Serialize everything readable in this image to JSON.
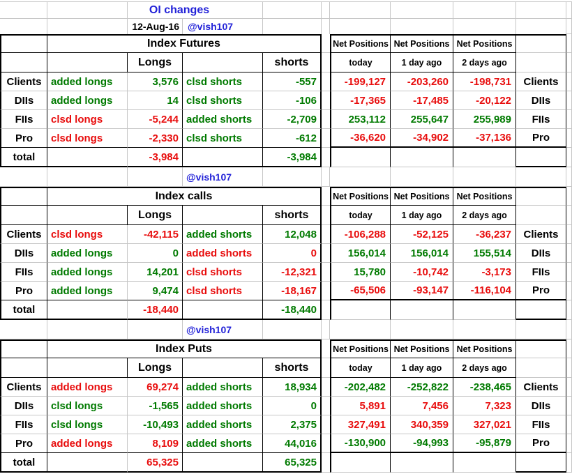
{
  "header": {
    "title": "OI changes",
    "date": "12-Aug-16",
    "handle": "@vish107"
  },
  "columns": {
    "net_positions": "Net Positions",
    "periods": [
      "today",
      "1 day ago",
      "2 days ago"
    ],
    "longs": "Longs",
    "shorts": "shorts"
  },
  "totals_label": "total",
  "colors": {
    "green": "#007A00",
    "red": "#E80D0D",
    "blue": "#2222D8",
    "grid": "#C6C6C6",
    "border": "#000000"
  },
  "sections": [
    {
      "slug": "section-index-futures",
      "title": "Index Futures",
      "rows": [
        {
          "label": "Clients",
          "long_action": "added longs",
          "long_action_color": "green",
          "long_value": "3,576",
          "long_value_color": "green",
          "short_action": "clsd shorts",
          "short_action_color": "green",
          "short_value": "-557",
          "short_value_color": "green",
          "net": [
            "-199,127",
            "-203,260",
            "-198,731"
          ],
          "net_colors": [
            "red",
            "red",
            "red"
          ]
        },
        {
          "label": "DIIs",
          "long_action": "added longs",
          "long_action_color": "green",
          "long_value": "14",
          "long_value_color": "green",
          "short_action": "clsd shorts",
          "short_action_color": "green",
          "short_value": "-106",
          "short_value_color": "green",
          "net": [
            "-17,365",
            "-17,485",
            "-20,122"
          ],
          "net_colors": [
            "red",
            "red",
            "red"
          ]
        },
        {
          "label": "FIIs",
          "long_action": "clsd longs",
          "long_action_color": "red",
          "long_value": "-5,244",
          "long_value_color": "red",
          "short_action": "added shorts",
          "short_action_color": "green",
          "short_value": "-2,709",
          "short_value_color": "green",
          "net": [
            "253,112",
            "255,647",
            "255,989"
          ],
          "net_colors": [
            "green",
            "green",
            "green"
          ]
        },
        {
          "label": "Pro",
          "long_action": "clsd longs",
          "long_action_color": "red",
          "long_value": "-2,330",
          "long_value_color": "red",
          "short_action": "clsd shorts",
          "short_action_color": "green",
          "short_value": "-612",
          "short_value_color": "green",
          "net": [
            "-36,620",
            "-34,902",
            "-37,136"
          ],
          "net_colors": [
            "red",
            "red",
            "red"
          ]
        }
      ],
      "total_long": "-3,984",
      "total_long_color": "red",
      "total_short": "-3,984",
      "total_short_color": "green",
      "has_separator": true,
      "separator_handle": "@vish107"
    },
    {
      "slug": "section-index-calls",
      "title": "Index calls",
      "rows": [
        {
          "label": "Clients",
          "long_action": "clsd longs",
          "long_action_color": "red",
          "long_value": "-42,115",
          "long_value_color": "red",
          "short_action": "added shorts",
          "short_action_color": "green",
          "short_value": "12,048",
          "short_value_color": "green",
          "net": [
            "-106,288",
            "-52,125",
            "-36,237"
          ],
          "net_colors": [
            "red",
            "red",
            "red"
          ]
        },
        {
          "label": "DIIs",
          "long_action": "added longs",
          "long_action_color": "green",
          "long_value": "0",
          "long_value_color": "green",
          "short_action": "added shorts",
          "short_action_color": "red",
          "short_value": "0",
          "short_value_color": "red",
          "net": [
            "156,014",
            "156,014",
            "155,514"
          ],
          "net_colors": [
            "green",
            "green",
            "green"
          ]
        },
        {
          "label": "FIIs",
          "long_action": "added longs",
          "long_action_color": "green",
          "long_value": "14,201",
          "long_value_color": "green",
          "short_action": "clsd shorts",
          "short_action_color": "red",
          "short_value": "-12,321",
          "short_value_color": "red",
          "net": [
            "15,780",
            "-10,742",
            "-3,173"
          ],
          "net_colors": [
            "green",
            "red",
            "red"
          ]
        },
        {
          "label": "Pro",
          "long_action": "added longs",
          "long_action_color": "green",
          "long_value": "9,474",
          "long_value_color": "green",
          "short_action": "clsd shorts",
          "short_action_color": "red",
          "short_value": "-18,167",
          "short_value_color": "red",
          "net": [
            "-65,506",
            "-93,147",
            "-116,104"
          ],
          "net_colors": [
            "red",
            "red",
            "red"
          ]
        }
      ],
      "total_long": "-18,440",
      "total_long_color": "red",
      "total_short": "-18,440",
      "total_short_color": "green",
      "has_separator": true,
      "separator_handle": "@vish107"
    },
    {
      "slug": "section-index-puts",
      "title": "Index Puts",
      "rows": [
        {
          "label": "Clients",
          "long_action": "added longs",
          "long_action_color": "red",
          "long_value": "69,274",
          "long_value_color": "red",
          "short_action": "added shorts",
          "short_action_color": "green",
          "short_value": "18,934",
          "short_value_color": "green",
          "net": [
            "-202,482",
            "-252,822",
            "-238,465"
          ],
          "net_colors": [
            "green",
            "green",
            "green"
          ]
        },
        {
          "label": "DIIs",
          "long_action": "clsd longs",
          "long_action_color": "green",
          "long_value": "-1,565",
          "long_value_color": "green",
          "short_action": "added shorts",
          "short_action_color": "green",
          "short_value": "0",
          "short_value_color": "green",
          "net": [
            "5,891",
            "7,456",
            "7,323"
          ],
          "net_colors": [
            "red",
            "red",
            "red"
          ]
        },
        {
          "label": "FIIs",
          "long_action": "clsd longs",
          "long_action_color": "green",
          "long_value": "-10,493",
          "long_value_color": "green",
          "short_action": "added shorts",
          "short_action_color": "green",
          "short_value": "2,375",
          "short_value_color": "green",
          "net": [
            "327,491",
            "340,359",
            "327,021"
          ],
          "net_colors": [
            "red",
            "red",
            "red"
          ]
        },
        {
          "label": "Pro",
          "long_action": "added longs",
          "long_action_color": "red",
          "long_value": "8,109",
          "long_value_color": "red",
          "short_action": "added shorts",
          "short_action_color": "green",
          "short_value": "44,016",
          "short_value_color": "green",
          "net": [
            "-130,900",
            "-94,993",
            "-95,879"
          ],
          "net_colors": [
            "green",
            "green",
            "green"
          ]
        }
      ],
      "total_long": "65,325",
      "total_long_color": "red",
      "total_short": "65,325",
      "total_short_color": "green",
      "has_separator": false,
      "separator_handle": ""
    }
  ]
}
